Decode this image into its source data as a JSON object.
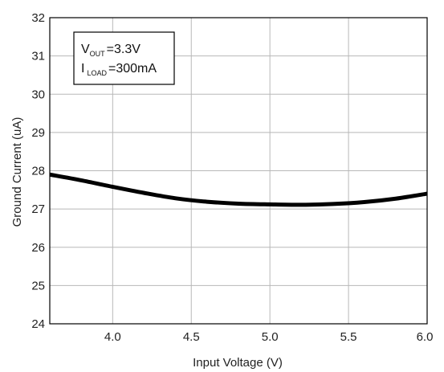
{
  "chart_data": {
    "type": "line",
    "xlabel": "Input Voltage (V)",
    "ylabel": "Ground Current (uA)",
    "xlim": [
      3.6,
      6.0
    ],
    "ylim": [
      24,
      32
    ],
    "x_ticks": [
      "4.0",
      "4.5",
      "5.0",
      "5.5",
      "6.0"
    ],
    "y_ticks": [
      "24",
      "25",
      "26",
      "27",
      "28",
      "29",
      "30",
      "31",
      "32"
    ],
    "grid": true,
    "annotation": {
      "line1": {
        "symbol": "V",
        "subscript": "OUT",
        "value": "=3.3V"
      },
      "line2": {
        "symbol": "I",
        "subscript": "LOAD",
        "value": "=300mA"
      }
    },
    "series": [
      {
        "x": [
          3.6,
          3.8,
          4.0,
          4.2,
          4.4,
          4.6,
          4.8,
          5.0,
          5.2,
          5.4,
          5.6,
          5.8,
          6.0
        ],
        "y": [
          27.9,
          27.75,
          27.58,
          27.42,
          27.28,
          27.19,
          27.14,
          27.12,
          27.11,
          27.13,
          27.18,
          27.27,
          27.4
        ]
      }
    ],
    "line_color": "#000000"
  }
}
